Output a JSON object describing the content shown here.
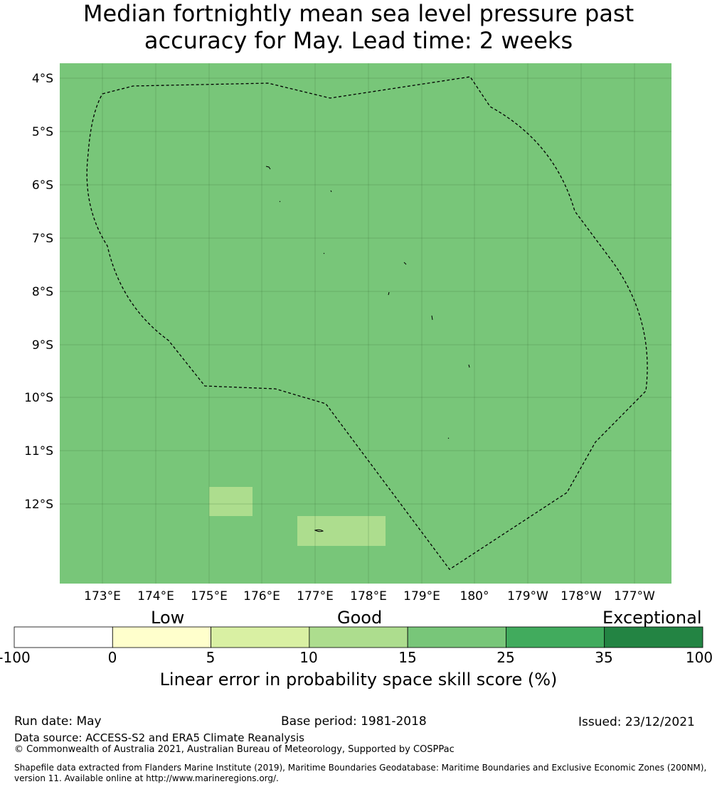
{
  "title": {
    "line1": "Median fortnightly mean sea level pressure past",
    "line2": "accuracy for May. Lead time: 2 weeks"
  },
  "map": {
    "background_color": "#78c679",
    "anomaly_color": "#addd8e",
    "lat_labels": [
      "4°S",
      "5°S",
      "6°S",
      "7°S",
      "8°S",
      "9°S",
      "10°S",
      "11°S",
      "12°S"
    ],
    "lon_labels": [
      "173°E",
      "174°E",
      "175°E",
      "176°E",
      "177°E",
      "178°E",
      "179°E",
      "180°",
      "179°W",
      "178°W",
      "177°W"
    ]
  },
  "colorbar": {
    "category_labels": {
      "low": "Low",
      "good": "Good",
      "exceptional": "Exceptional"
    },
    "bins": [
      {
        "from": -100,
        "to": 0,
        "color": "#ffffff"
      },
      {
        "from": 0,
        "to": 5,
        "color": "#ffffcc"
      },
      {
        "from": 5,
        "to": 10,
        "color": "#d9f0a3"
      },
      {
        "from": 10,
        "to": 15,
        "color": "#addd8e"
      },
      {
        "from": 15,
        "to": 25,
        "color": "#78c679"
      },
      {
        "from": 25,
        "to": 35,
        "color": "#41ab5d"
      },
      {
        "from": 35,
        "to": 100,
        "color": "#238443"
      }
    ],
    "tick_labels": [
      "-100",
      "0",
      "5",
      "10",
      "15",
      "25",
      "35",
      "100"
    ],
    "title": "Linear error in probability space skill score (%)"
  },
  "footer": {
    "run_date": "Run date: May",
    "base_period": "Base period: 1981-2018",
    "issued": "Issued: 23/12/2021",
    "data_source": "Data source: ACCESS-S2 and ERA5 Climate Reanalysis",
    "copyright": "© Commonwealth of Australia 2021, Australian Bureau of Meteorology, Supported by COSPPac",
    "shapefile": "Shapefile data extracted from Flanders Marine Institute (2019), Maritime Boundaries Geodatabase: Maritime Boundaries and Exclusive Economic Zones (200NM), version 11. Available online at http://www.marineregions.org/."
  }
}
